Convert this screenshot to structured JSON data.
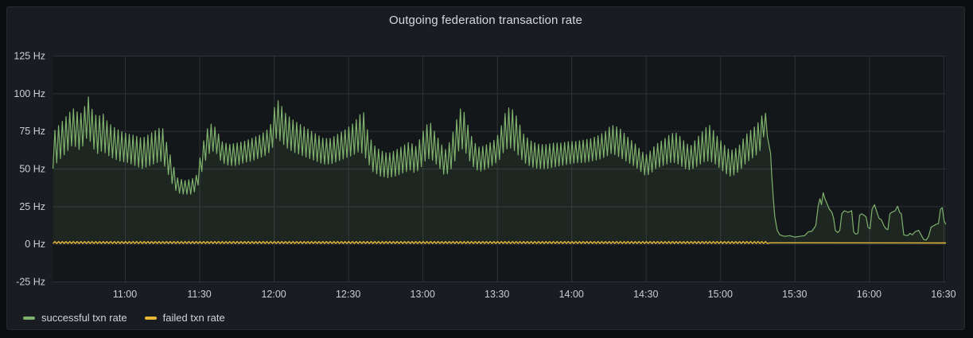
{
  "panel": {
    "title": "Outgoing federation transaction rate"
  },
  "legend": {
    "items": [
      {
        "label": "successful txn rate",
        "color": "#7eb26d"
      },
      {
        "label": "failed txn rate",
        "color": "#eab839"
      }
    ]
  },
  "chart_data": {
    "type": "line",
    "title": "Outgoing federation transaction rate",
    "unit": "Hz",
    "grid": "on",
    "legend_position": "bottom-left",
    "colors": {
      "plot_background": "#14171a",
      "grid_line": "#2e3238",
      "tick_text": "#c9ced4"
    },
    "y_axis": {
      "min": -25,
      "max": 125,
      "tick_step": 25,
      "tick_values": [
        125,
        100,
        75,
        50,
        25,
        0,
        -25
      ],
      "tick_labels": [
        "125 Hz",
        "100 Hz",
        "75 Hz",
        "50 Hz",
        "25 Hz",
        "0 Hz",
        "-25 Hz"
      ]
    },
    "x_axis": {
      "kind": "time",
      "view_start_min": 630.8,
      "view_end_min": 991,
      "tick_minutes": [
        660,
        690,
        720,
        750,
        780,
        810,
        840,
        870,
        900,
        930,
        960,
        990
      ],
      "tick_labels": [
        "11:00",
        "11:30",
        "12:00",
        "12:30",
        "13:00",
        "13:30",
        "14:00",
        "14:30",
        "15:00",
        "15:30",
        "16:00",
        "16:30"
      ]
    },
    "series": [
      {
        "name": "successful txn rate",
        "color": "#7eb26d",
        "line_width": 1.2,
        "fill_to_zero": true,
        "fill_opacity": 0.1,
        "oscillation_period_min": 1.5,
        "envelope_t_lo_hi": [
          [
            631,
            50,
            74
          ],
          [
            633,
            55,
            78
          ],
          [
            636,
            60,
            84
          ],
          [
            639,
            66,
            90
          ],
          [
            642,
            62,
            86
          ],
          [
            644,
            68,
            92
          ],
          [
            645,
            72,
            99
          ],
          [
            647,
            64,
            88
          ],
          [
            649,
            60,
            84
          ],
          [
            651,
            62,
            87
          ],
          [
            653,
            59,
            81
          ],
          [
            655,
            57,
            78
          ],
          [
            658,
            55,
            75
          ],
          [
            661,
            54,
            73
          ],
          [
            664,
            52,
            72
          ],
          [
            667,
            50,
            70
          ],
          [
            670,
            52,
            73
          ],
          [
            673,
            54,
            76
          ],
          [
            675,
            55,
            78
          ],
          [
            677,
            48,
            66
          ],
          [
            679,
            40,
            55
          ],
          [
            681,
            34,
            44
          ],
          [
            684,
            33,
            42
          ],
          [
            687,
            33,
            43
          ],
          [
            689,
            36,
            46
          ],
          [
            691,
            48,
            64
          ],
          [
            693,
            58,
            76
          ],
          [
            695,
            62,
            80
          ],
          [
            697,
            60,
            76
          ],
          [
            699,
            54,
            68
          ],
          [
            702,
            52,
            66
          ],
          [
            705,
            52,
            67
          ],
          [
            708,
            54,
            68
          ],
          [
            711,
            55,
            70
          ],
          [
            714,
            57,
            72
          ],
          [
            717,
            59,
            75
          ],
          [
            719,
            62,
            80
          ],
          [
            721,
            70,
            97
          ],
          [
            723,
            68,
            92
          ],
          [
            725,
            64,
            86
          ],
          [
            728,
            61,
            82
          ],
          [
            731,
            59,
            79
          ],
          [
            734,
            57,
            76
          ],
          [
            737,
            55,
            73
          ],
          [
            740,
            53,
            70
          ],
          [
            743,
            53,
            70
          ],
          [
            746,
            55,
            73
          ],
          [
            749,
            57,
            76
          ],
          [
            752,
            59,
            80
          ],
          [
            754,
            61,
            84
          ],
          [
            756,
            60,
            89
          ],
          [
            758,
            54,
            74
          ],
          [
            760,
            48,
            66
          ],
          [
            763,
            45,
            62
          ],
          [
            766,
            44,
            60
          ],
          [
            769,
            45,
            62
          ],
          [
            772,
            47,
            65
          ],
          [
            775,
            49,
            68
          ],
          [
            777,
            47,
            64
          ],
          [
            779,
            50,
            70
          ],
          [
            781,
            55,
            78
          ],
          [
            783,
            57,
            81
          ],
          [
            785,
            54,
            74
          ],
          [
            787,
            50,
            68
          ],
          [
            789,
            45,
            62
          ],
          [
            791,
            48,
            68
          ],
          [
            793,
            55,
            78
          ],
          [
            795,
            64,
            90
          ],
          [
            797,
            62,
            87
          ],
          [
            799,
            55,
            74
          ],
          [
            801,
            50,
            67
          ],
          [
            803,
            48,
            64
          ],
          [
            806,
            50,
            66
          ],
          [
            809,
            53,
            69
          ],
          [
            811,
            56,
            74
          ],
          [
            813,
            62,
            86
          ],
          [
            815,
            64,
            91
          ],
          [
            817,
            62,
            88
          ],
          [
            819,
            58,
            80
          ],
          [
            821,
            54,
            72
          ],
          [
            824,
            51,
            68
          ],
          [
            827,
            50,
            66
          ],
          [
            830,
            50,
            66
          ],
          [
            833,
            51,
            67
          ],
          [
            836,
            52,
            67
          ],
          [
            839,
            53,
            68
          ],
          [
            842,
            54,
            68
          ],
          [
            845,
            54,
            69
          ],
          [
            848,
            55,
            70
          ],
          [
            851,
            56,
            72
          ],
          [
            854,
            58,
            75
          ],
          [
            856,
            60,
            79
          ],
          [
            858,
            59,
            78
          ],
          [
            860,
            57,
            76
          ],
          [
            862,
            55,
            72
          ],
          [
            864,
            53,
            69
          ],
          [
            866,
            51,
            66
          ],
          [
            868,
            48,
            62
          ],
          [
            870,
            45,
            59
          ],
          [
            872,
            47,
            62
          ],
          [
            874,
            50,
            66
          ],
          [
            877,
            52,
            69
          ],
          [
            880,
            54,
            73
          ],
          [
            882,
            54,
            74
          ],
          [
            884,
            52,
            71
          ],
          [
            886,
            50,
            67
          ],
          [
            888,
            49,
            65
          ],
          [
            890,
            51,
            69
          ],
          [
            892,
            53,
            73
          ],
          [
            894,
            55,
            77
          ],
          [
            896,
            55,
            79
          ],
          [
            898,
            53,
            73
          ],
          [
            900,
            50,
            69
          ],
          [
            902,
            47,
            65
          ],
          [
            904,
            45,
            62
          ],
          [
            906,
            46,
            63
          ],
          [
            908,
            49,
            66
          ],
          [
            910,
            53,
            72
          ],
          [
            912,
            56,
            75
          ],
          [
            914,
            58,
            78
          ],
          [
            916,
            62,
            82
          ],
          [
            917,
            70,
            86
          ],
          [
            918.5,
            73,
            87
          ],
          [
            919.5,
            70,
            84
          ]
        ],
        "tail_points_t_v": [
          [
            920.3,
            60
          ],
          [
            920.8,
            45
          ],
          [
            921.4,
            30
          ],
          [
            922,
            18
          ],
          [
            923,
            9
          ],
          [
            924,
            6
          ],
          [
            926,
            5
          ],
          [
            928,
            5.5
          ],
          [
            930,
            4.5
          ],
          [
            932,
            5
          ],
          [
            934,
            5.5
          ],
          [
            935.5,
            8
          ],
          [
            937,
            8.5
          ],
          [
            938.5,
            12
          ],
          [
            939.5,
            25
          ],
          [
            940.2,
            30
          ],
          [
            940.8,
            26
          ],
          [
            941.5,
            34
          ],
          [
            942.2,
            30
          ],
          [
            943,
            27
          ],
          [
            944,
            23
          ],
          [
            945,
            21
          ],
          [
            945.7,
            17
          ],
          [
            946.4,
            9
          ],
          [
            947.3,
            7.5
          ],
          [
            948.2,
            9
          ],
          [
            949,
            20
          ],
          [
            950,
            22
          ],
          [
            951.5,
            21
          ],
          [
            953,
            22
          ],
          [
            953.8,
            8
          ],
          [
            954.6,
            6.5
          ],
          [
            955.5,
            7
          ],
          [
            956.2,
            19
          ],
          [
            957,
            20
          ],
          [
            958,
            19
          ],
          [
            958.8,
            18
          ],
          [
            959.6,
            11
          ],
          [
            960.4,
            10
          ],
          [
            961.2,
            23
          ],
          [
            962.2,
            26
          ],
          [
            963,
            22
          ],
          [
            964,
            17
          ],
          [
            965,
            16
          ],
          [
            966,
            12
          ],
          [
            966.8,
            10
          ],
          [
            967.6,
            9.5
          ],
          [
            968.4,
            20
          ],
          [
            969.2,
            21
          ],
          [
            970.5,
            22
          ],
          [
            971.5,
            25
          ],
          [
            972.3,
            21
          ],
          [
            973,
            20
          ],
          [
            974,
            6
          ],
          [
            975.5,
            5.5
          ],
          [
            976.5,
            7
          ],
          [
            977.5,
            6
          ],
          [
            978.5,
            8
          ],
          [
            980,
            9
          ],
          [
            981,
            6
          ],
          [
            982,
            3
          ],
          [
            983,
            2.5
          ],
          [
            984,
            5
          ],
          [
            985,
            11
          ],
          [
            986,
            12
          ],
          [
            987,
            13
          ],
          [
            988,
            13.5
          ],
          [
            988.8,
            23
          ],
          [
            989.5,
            24
          ],
          [
            990.3,
            15
          ],
          [
            991,
            13
          ]
        ]
      },
      {
        "name": "failed txn rate",
        "color": "#eab839",
        "line_width": 1.4,
        "fill_to_zero": false,
        "fill_opacity": 0,
        "oscillation_period_min": 1.5,
        "envelope_t_lo_hi": [
          [
            631,
            0.3,
            1.5
          ],
          [
            919,
            0.3,
            1.5
          ]
        ],
        "tail_points_t_v": [
          [
            920,
            0.7
          ],
          [
            991,
            0.6
          ]
        ]
      }
    ]
  }
}
